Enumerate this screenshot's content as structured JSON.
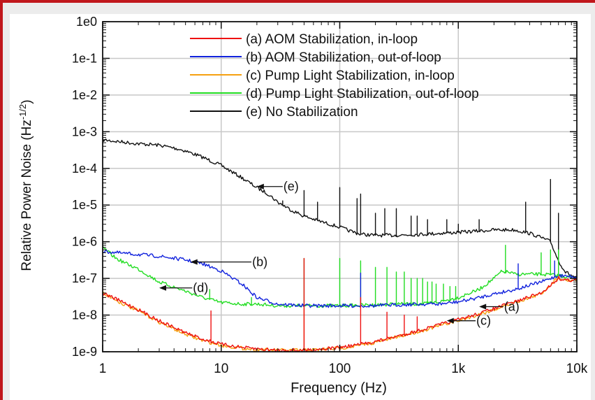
{
  "chart_data": {
    "type": "line",
    "x_scale": "log",
    "y_scale": "log",
    "xlabel": "Frequency (Hz)",
    "ylabel": "Relative Power Noise (Hz",
    "ylabel_sup": "-1/2",
    "ylabel_end": ")",
    "xlim": [
      1,
      10000
    ],
    "ylim": [
      1e-09,
      1
    ],
    "grid": true,
    "legend_position": "top-center",
    "x_ticks": [
      {
        "value": 1,
        "label": "1"
      },
      {
        "value": 10,
        "label": "10"
      },
      {
        "value": 100,
        "label": "100"
      },
      {
        "value": 1000,
        "label": "1k"
      },
      {
        "value": 10000,
        "label": "10k"
      }
    ],
    "y_ticks": [
      {
        "value": 1,
        "label": "1e0"
      },
      {
        "value": 0.1,
        "label": "1e-1"
      },
      {
        "value": 0.01,
        "label": "1e-2"
      },
      {
        "value": 0.001,
        "label": "1e-3"
      },
      {
        "value": 0.0001,
        "label": "1e-4"
      },
      {
        "value": 1e-05,
        "label": "1e-5"
      },
      {
        "value": 1e-06,
        "label": "1e-6"
      },
      {
        "value": 1e-07,
        "label": "1e-7"
      },
      {
        "value": 1e-08,
        "label": "1e-8"
      },
      {
        "value": 1e-09,
        "label": "1e-9"
      }
    ],
    "series": [
      {
        "name": "(a) AOM Stabilization, in-loop",
        "color": "#ee1111",
        "points": [
          [
            1,
            4e-08
          ],
          [
            1.5,
            2.2e-08
          ],
          [
            2,
            1.4e-08
          ],
          [
            3,
            7e-09
          ],
          [
            5,
            3.3e-09
          ],
          [
            7,
            2.2e-09
          ],
          [
            10,
            1.6e-09
          ],
          [
            15,
            1.3e-09
          ],
          [
            20,
            1.2e-09
          ],
          [
            30,
            1.1e-09
          ],
          [
            50,
            1.1e-09
          ],
          [
            70,
            1.2e-09
          ],
          [
            100,
            1.3e-09
          ],
          [
            150,
            1.6e-09
          ],
          [
            200,
            1.9e-09
          ],
          [
            300,
            2.6e-09
          ],
          [
            500,
            4e-09
          ],
          [
            700,
            5.5e-09
          ],
          [
            1000,
            7.5e-09
          ],
          [
            1500,
            1.1e-08
          ],
          [
            2000,
            1.5e-08
          ],
          [
            3000,
            2.3e-08
          ],
          [
            5000,
            4e-08
          ],
          [
            7000,
            1e-07
          ],
          [
            8000,
            9e-08
          ],
          [
            10000,
            9e-08
          ]
        ],
        "spikes": [
          [
            8.2,
            1.3e-08
          ],
          [
            50,
            3.5e-07
          ],
          [
            150,
            3e-08
          ],
          [
            250,
            1.2e-08
          ],
          [
            350,
            1e-08
          ],
          [
            450,
            9e-09
          ]
        ]
      },
      {
        "name": "(b) AOM Stabilization, out-of-loop",
        "color": "#1122dd",
        "points": [
          [
            1,
            5.5e-07
          ],
          [
            1.5,
            4.8e-07
          ],
          [
            2,
            4.5e-07
          ],
          [
            3,
            4e-07
          ],
          [
            5,
            3.2e-07
          ],
          [
            7,
            2.5e-07
          ],
          [
            10,
            1.6e-07
          ],
          [
            15,
            7e-08
          ],
          [
            20,
            3e-08
          ],
          [
            30,
            2e-08
          ],
          [
            50,
            1.8e-08
          ],
          [
            100,
            1.8e-08
          ],
          [
            200,
            1.8e-08
          ],
          [
            300,
            1.9e-08
          ],
          [
            500,
            2e-08
          ],
          [
            700,
            2e-08
          ],
          [
            1000,
            2.3e-08
          ],
          [
            1500,
            3e-08
          ],
          [
            2000,
            3.8e-08
          ],
          [
            3000,
            5e-08
          ],
          [
            5000,
            8e-08
          ],
          [
            7000,
            1.2e-07
          ],
          [
            10000,
            1.1e-07
          ]
        ],
        "spikes": [
          [
            150,
            1.4e-07
          ],
          [
            3200,
            2.5e-07
          ],
          [
            6500,
            3e-07
          ]
        ]
      },
      {
        "name": "(c) Pump Light Stabilization, in-loop",
        "color": "#f5a010",
        "points": [
          [
            1,
            4e-08
          ],
          [
            1.5,
            2e-08
          ],
          [
            2,
            1.3e-08
          ],
          [
            3,
            6.5e-09
          ],
          [
            5,
            3e-09
          ],
          [
            7,
            2e-09
          ],
          [
            10,
            1.5e-09
          ],
          [
            15,
            1.25e-09
          ],
          [
            20,
            1.15e-09
          ],
          [
            30,
            1.1e-09
          ],
          [
            50,
            1.1e-09
          ],
          [
            70,
            1.15e-09
          ],
          [
            100,
            1.25e-09
          ],
          [
            150,
            1.5e-09
          ],
          [
            200,
            1.8e-09
          ],
          [
            300,
            2.5e-09
          ],
          [
            500,
            3.8e-09
          ],
          [
            700,
            5.2e-09
          ],
          [
            1000,
            7e-09
          ],
          [
            1500,
            1.05e-08
          ],
          [
            2000,
            1.4e-08
          ],
          [
            3000,
            2.2e-08
          ],
          [
            5000,
            3.8e-08
          ],
          [
            7000,
            1.1e-07
          ],
          [
            8000,
            9e-08
          ],
          [
            10000,
            9e-08
          ]
        ],
        "spikes": [
          [
            50,
            1.5e-08
          ]
        ]
      },
      {
        "name": "(d) Pump Light Stabilization, out-of-loop",
        "color": "#22dd22",
        "points": [
          [
            1,
            7e-07
          ],
          [
            1.3,
            3.5e-07
          ],
          [
            1.6,
            2.5e-07
          ],
          [
            2,
            1.8e-07
          ],
          [
            3,
            8e-08
          ],
          [
            5,
            4.5e-08
          ],
          [
            7,
            3e-08
          ],
          [
            10,
            2.2e-08
          ],
          [
            15,
            2e-08
          ],
          [
            20,
            2e-08
          ],
          [
            30,
            1.8e-08
          ],
          [
            50,
            1.8e-08
          ],
          [
            100,
            1.8e-08
          ],
          [
            200,
            1.9e-08
          ],
          [
            300,
            2e-08
          ],
          [
            500,
            2e-08
          ],
          [
            700,
            2.3e-08
          ],
          [
            1000,
            3e-08
          ],
          [
            1500,
            5e-08
          ],
          [
            2000,
            1e-07
          ],
          [
            2300,
            1.5e-07
          ],
          [
            2600,
            1.5e-07
          ],
          [
            3000,
            1.3e-07
          ],
          [
            5000,
            1.3e-07
          ],
          [
            7000,
            1.2e-07
          ],
          [
            10000,
            1e-07
          ]
        ],
        "spikes": [
          [
            8,
            5e-08
          ],
          [
            18,
            3e-08
          ],
          [
            50,
            3.5e-07
          ],
          [
            100,
            3.5e-07
          ],
          [
            150,
            3e-07
          ],
          [
            200,
            2e-07
          ],
          [
            250,
            2e-07
          ],
          [
            300,
            1.5e-07
          ],
          [
            350,
            1.5e-07
          ],
          [
            400,
            1e-07
          ],
          [
            450,
            1e-07
          ],
          [
            500,
            1e-07
          ],
          [
            550,
            8e-08
          ],
          [
            600,
            8e-08
          ],
          [
            650,
            7e-08
          ],
          [
            750,
            7e-08
          ],
          [
            850,
            6e-08
          ],
          [
            950,
            6e-08
          ],
          [
            2500,
            8e-07
          ],
          [
            5000,
            5e-07
          ],
          [
            6000,
            6e-07
          ],
          [
            7000,
            6e-07
          ]
        ]
      },
      {
        "name": "(e) No Stabilization",
        "color": "#111111",
        "points": [
          [
            1,
            0.0006
          ],
          [
            1.5,
            0.00052
          ],
          [
            2,
            0.00047
          ],
          [
            3,
            0.00043
          ],
          [
            4,
            0.00036
          ],
          [
            5,
            0.0003
          ],
          [
            7,
            0.0002
          ],
          [
            10,
            0.00012
          ],
          [
            15,
            5.5e-05
          ],
          [
            20,
            3e-05
          ],
          [
            25,
            2e-05
          ],
          [
            30,
            1.2e-05
          ],
          [
            40,
            7e-06
          ],
          [
            50,
            5e-06
          ],
          [
            70,
            3.5e-06
          ],
          [
            100,
            2.5e-06
          ],
          [
            120,
            2e-06
          ],
          [
            150,
            1.6e-06
          ],
          [
            200,
            1.5e-06
          ],
          [
            300,
            1.5e-06
          ],
          [
            500,
            1.6e-06
          ],
          [
            700,
            1.7e-06
          ],
          [
            1000,
            1.8e-06
          ],
          [
            2000,
            2.1e-06
          ],
          [
            3000,
            2.1e-06
          ],
          [
            4000,
            1.7e-06
          ],
          [
            5000,
            1.3e-06
          ],
          [
            6000,
            1e-06
          ],
          [
            7000,
            3e-07
          ],
          [
            8000,
            1.5e-07
          ],
          [
            10000,
            1e-07
          ]
        ],
        "spikes": [
          [
            33,
            1.3e-05
          ],
          [
            50,
            2.5e-05
          ],
          [
            65,
            1.2e-05
          ],
          [
            100,
            3e-05
          ],
          [
            140,
            1.5e-05
          ],
          [
            150,
            2e-05
          ],
          [
            200,
            6e-06
          ],
          [
            240,
            8e-06
          ],
          [
            300,
            8e-06
          ],
          [
            400,
            5e-06
          ],
          [
            450,
            5e-06
          ],
          [
            550,
            4e-06
          ],
          [
            800,
            4e-06
          ],
          [
            1000,
            3e-06
          ],
          [
            1500,
            4e-06
          ],
          [
            3700,
            1.2e-05
          ],
          [
            6000,
            5e-05
          ],
          [
            7000,
            6e-06
          ]
        ]
      }
    ],
    "annotations": [
      {
        "label": "(e)",
        "arrow_to": [
          20,
          3.2e-05
        ],
        "label_at": [
          33,
          3.2e-05
        ]
      },
      {
        "label": "(b)",
        "arrow_to": [
          5.5,
          2.8e-07
        ],
        "label_at": [
          18,
          2.8e-07
        ]
      },
      {
        "label": "(d)",
        "arrow_to": [
          3,
          5.5e-08
        ],
        "label_at": [
          5.7,
          5.5e-08
        ]
      },
      {
        "label": "(a)",
        "arrow_to": [
          1500,
          1.7e-08
        ],
        "label_at": [
          2400,
          1.7e-08
        ]
      },
      {
        "label": "(c)",
        "arrow_to": [
          800,
          7e-09
        ],
        "label_at": [
          1400,
          7e-09
        ]
      }
    ]
  }
}
